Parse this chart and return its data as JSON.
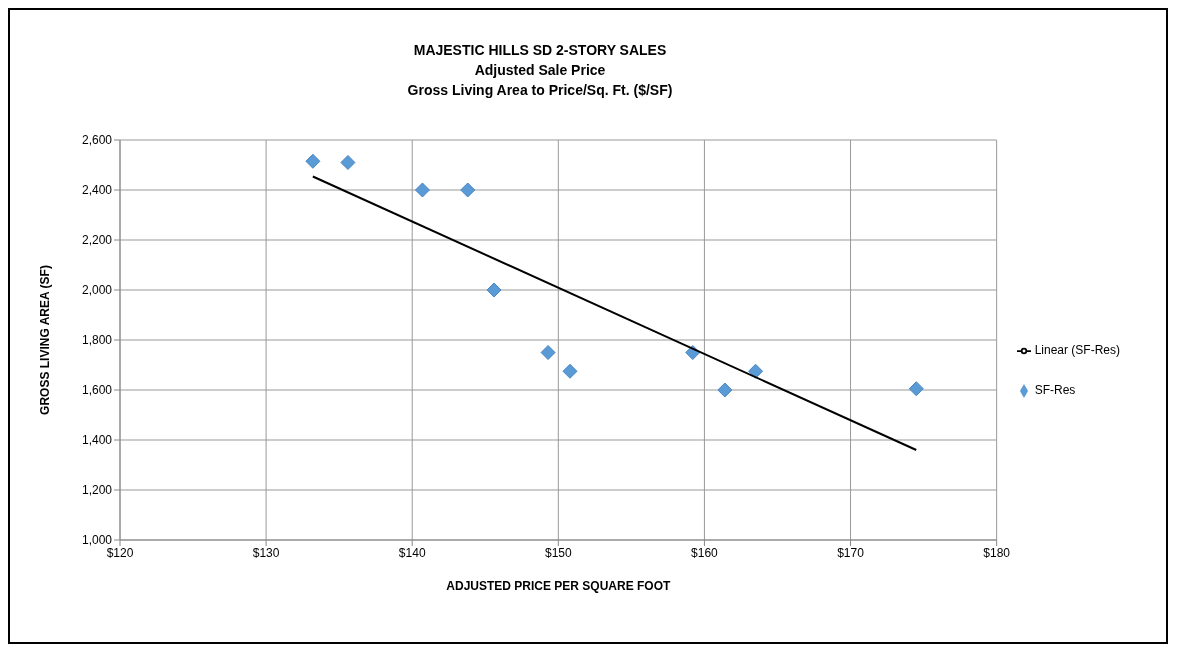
{
  "chart_data": {
    "type": "scatter",
    "title": "MAJESTIC HILLS SD 2-STORY SALES",
    "subtitle": "Adjusted Sale Price\nGross Living Area to Price/Sq. Ft. ($/SF)",
    "xlabel": "ADJUSTED PRICE PER SQUARE FOOT",
    "ylabel": "GROSS LIVING AREA (SF)",
    "series": [
      {
        "name": "SF-Res",
        "color": "#5b9bd5",
        "marker": "diamond",
        "x": [
          133.2,
          135.6,
          140.7,
          143.8,
          145.6,
          149.3,
          150.8,
          159.2,
          161.4,
          163.5,
          174.5
        ],
        "values": [
          2515,
          2510,
          2400,
          2400,
          2000,
          1750,
          1675,
          1750,
          1600,
          1675,
          1605
        ]
      },
      {
        "name": "Linear (SF-Res)",
        "color": "#000000",
        "type": "line",
        "marker": "none",
        "x": [
          133.2,
          174.5
        ],
        "values": [
          2454,
          1360
        ]
      }
    ],
    "xlim": [
      120,
      180
    ],
    "xticks": [
      {
        "value": 120,
        "label": "$120"
      },
      {
        "value": 130,
        "label": "$130"
      },
      {
        "value": 140,
        "label": "$140"
      },
      {
        "value": 150,
        "label": "$150"
      },
      {
        "value": 160,
        "label": "$160"
      },
      {
        "value": 170,
        "label": "$170"
      },
      {
        "value": 180,
        "label": "$180"
      }
    ],
    "ylim": [
      1000,
      2600
    ],
    "yticks": [
      {
        "value": 1000,
        "label": "1,000"
      },
      {
        "value": 1200,
        "label": "1,200"
      },
      {
        "value": 1400,
        "label": "1,400"
      },
      {
        "value": 1600,
        "label": "1,600"
      },
      {
        "value": 1800,
        "label": "1,800"
      },
      {
        "value": 2000,
        "label": "2,000"
      },
      {
        "value": 2200,
        "label": "2,200"
      },
      {
        "value": 2400,
        "label": "2,400"
      },
      {
        "value": 2600,
        "label": "2,600"
      }
    ],
    "grid": true,
    "legend": "right"
  }
}
